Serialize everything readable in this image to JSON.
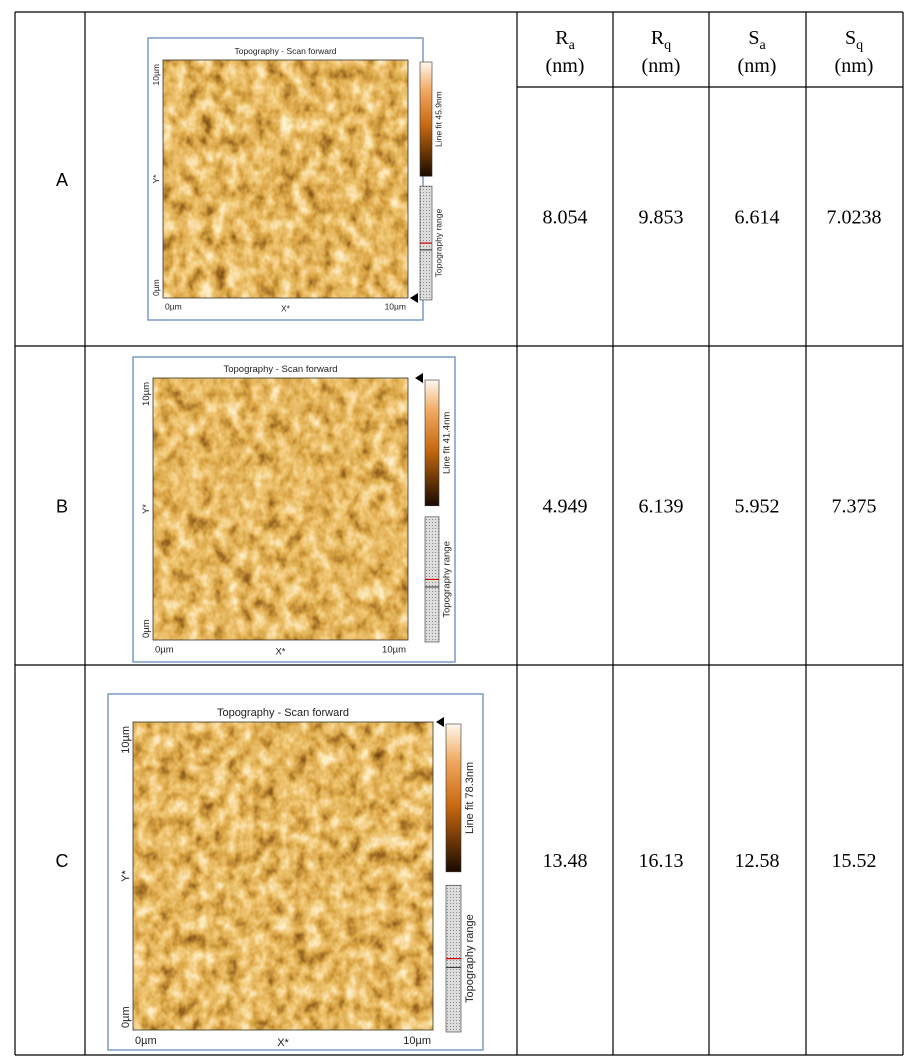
{
  "header": {
    "columns": [
      {
        "symbol": "R",
        "subscript": "a",
        "unit": "(nm)"
      },
      {
        "symbol": "R",
        "subscript": "q",
        "unit": "(nm)"
      },
      {
        "symbol": "S",
        "subscript": "a",
        "unit": "(nm)"
      },
      {
        "symbol": "S",
        "subscript": "q",
        "unit": "(nm)"
      }
    ]
  },
  "rows": [
    {
      "label": "A",
      "image": {
        "title": "Topography - Scan forward",
        "y_end": "10µm",
        "y_label": "Y*",
        "y_start": "0µm",
        "x_start": "0µm",
        "x_label": "X*",
        "x_end": "10µm",
        "colorbar": "Line fit 45.9nm",
        "range_label": "Topography range"
      },
      "values": [
        8.054,
        9.853,
        6.614,
        7.0238
      ]
    },
    {
      "label": "B",
      "image": {
        "title": "Topography - Scan forward",
        "y_end": "10µm",
        "y_label": "Y*",
        "y_start": "0µm",
        "x_start": "0µm",
        "x_label": "X*",
        "x_end": "10µm",
        "colorbar": "Line fit 41.4nm",
        "range_label": "Topography range"
      },
      "values": [
        4.949,
        6.139,
        5.952,
        7.375
      ]
    },
    {
      "label": "C",
      "image": {
        "title": "Topography - Scan forward",
        "y_end": "10µm",
        "y_label": "Y*",
        "y_start": "0µm",
        "x_start": "0µm",
        "x_label": "X*",
        "x_end": "10µm",
        "colorbar": "Line fit 78.3nm",
        "range_label": "Topography range"
      },
      "values": [
        13.48,
        16.13,
        12.58,
        15.52
      ]
    }
  ]
}
